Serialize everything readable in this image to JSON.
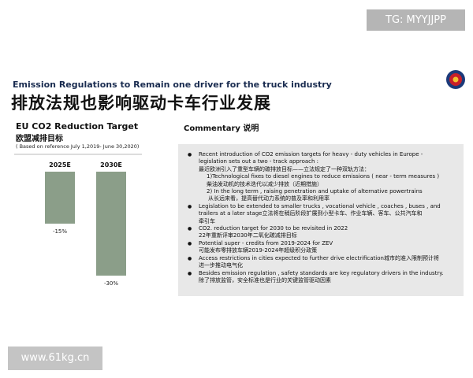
{
  "watermark_top": "TG: MYYJJPP",
  "watermark_bottom": "www.61kg.cn",
  "header": {
    "title_en": "Emission Regulations to Remain one driver for the truck industry",
    "title_zh": "排放法规也影响驱动卡车行业发展"
  },
  "chart_data": {
    "type": "bar",
    "title": "EU CO2 Reduction Target",
    "subtitle": "欧盟减排目标",
    "note": "( Based on reference July 1,2019- June 30,2020)",
    "categories": [
      "2025E",
      "2030E"
    ],
    "values": [
      -15,
      -30
    ],
    "value_labels": [
      "-15%",
      "-30%"
    ],
    "color": "#8b9e89"
  },
  "commentary": {
    "title": "Commentary 说明",
    "items": [
      [
        "Recent introduction of CO2 emission targets for heavy - duty vehicles in Europe -",
        "legislation sets out a two - track approach :",
        "最近欧洲引入了重型车辆的碳排放目标——立法规定了一种双轨方法：",
        "1)Technological fixes to diesel engines to reduce emissions ( near  -  term measures )",
        "柴油发动机的技术迭代以减少排放（近期措施）",
        "2) In the long term , raising penetration and uptake of alternative powertrains",
        "从长远来看，提高替代动力系统的普及率和利用率"
      ],
      [
        "Legislation to be extended to smaller trucks , vocational vehicle , coaches , buses , and",
        "trailers at a later stage立法将在稍后阶段扩展到小型卡车、作业车辆、客车、公共汽车和",
        "牵引车"
      ],
      [
        "CO2. reduction target for 2030 to be revisited in 2022",
        "22年重新评审2030年二氧化碳减排目标"
      ],
      [
        "Potential super - credits from 2019-2024 for ZEV",
        "可能发布零排放车辆2019-2024年超级积分政策"
      ],
      [
        "Access restrictions in cities expected to further drive electrification城市的准入限制预计将",
        "进一步推动电气化"
      ],
      [
        "Besides emission regulation , safety standards are key regulatory drivers in the industry.",
        "除了排放监管，安全标准也是行业的关键监管驱动因素"
      ]
    ]
  }
}
